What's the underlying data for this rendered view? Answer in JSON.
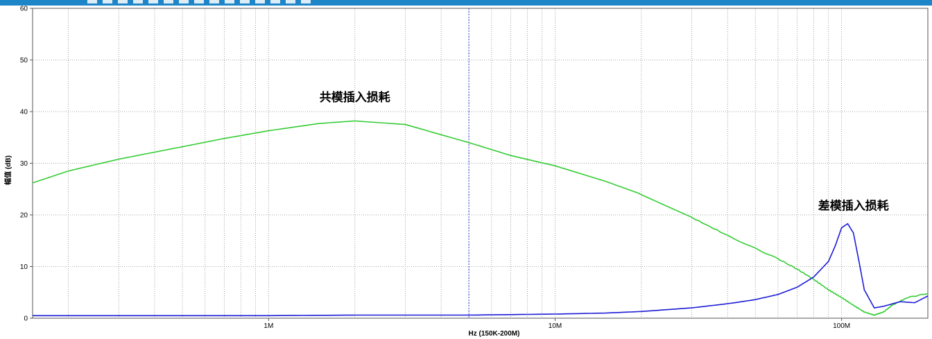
{
  "chart_data": {
    "type": "line",
    "xlabel": "Hz  (150K-200M)",
    "ylabel": "幅值 (dB)",
    "xscale": "log",
    "xlim": [
      150000,
      200000000
    ],
    "ylim": [
      0,
      60
    ],
    "yticks": [
      "0",
      "10",
      "20",
      "30",
      "40",
      "50",
      "60"
    ],
    "xticks": [
      {
        "value": 1000000,
        "label": "1M"
      },
      {
        "value": 10000000,
        "label": "10M"
      },
      {
        "value": 100000000,
        "label": "100M"
      }
    ],
    "grid": true,
    "marker_x": 5000000,
    "annotations": [
      {
        "text": "共模插入损耗",
        "x": 2000000,
        "y": 42,
        "color": "#000000"
      },
      {
        "text": "差模插入损耗",
        "x": 110000000,
        "y": 21,
        "color": "#000000"
      }
    ],
    "series": [
      {
        "color": "#33cc33",
        "x": [
          150000,
          200000,
          300000,
          500000,
          700000,
          1000000,
          1500000,
          2000000,
          3000000,
          5000000,
          7000000,
          10000000,
          15000000,
          20000000,
          30000000,
          40000000,
          50000000,
          60000000,
          70000000,
          80000000,
          90000000,
          100000000,
          110000000,
          120000000,
          130000000,
          140000000,
          150000000,
          170000000,
          200000000
        ],
        "y": [
          26.2,
          28.5,
          30.8,
          33.2,
          34.8,
          36.3,
          37.7,
          38.2,
          37.5,
          34.0,
          31.5,
          29.5,
          26.5,
          24.0,
          19.5,
          16.0,
          13.5,
          11.5,
          9.5,
          7.5,
          5.5,
          4.0,
          2.5,
          1.2,
          0.6,
          1.2,
          2.5,
          4.0,
          4.8
        ]
      },
      {
        "color": "#1a1ad6",
        "x": [
          150000,
          500000,
          1000000,
          2000000,
          5000000,
          10000000,
          15000000,
          20000000,
          30000000,
          40000000,
          50000000,
          60000000,
          70000000,
          80000000,
          90000000,
          95000000,
          100000000,
          105000000,
          110000000,
          115000000,
          120000000,
          130000000,
          140000000,
          160000000,
          180000000,
          200000000
        ],
        "y": [
          0.5,
          0.5,
          0.5,
          0.6,
          0.6,
          0.8,
          1.0,
          1.3,
          2.0,
          2.8,
          3.6,
          4.6,
          6.0,
          8.0,
          11.0,
          14.0,
          17.5,
          18.3,
          16.5,
          11.0,
          5.5,
          2.0,
          2.3,
          3.2,
          3.0,
          4.3
        ]
      }
    ]
  }
}
